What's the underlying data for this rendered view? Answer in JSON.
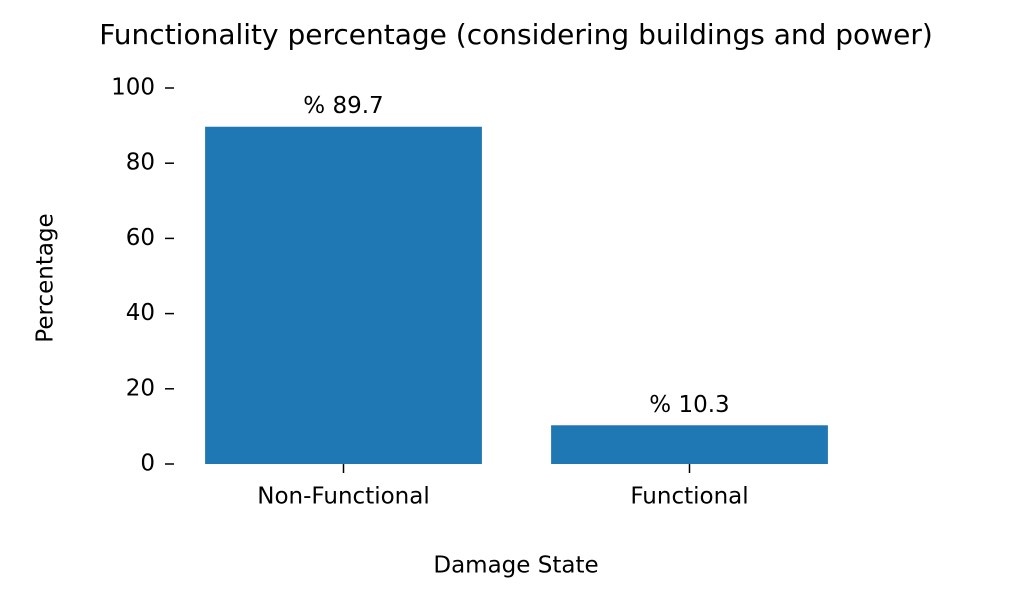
{
  "chart_data": {
    "type": "bar",
    "title": "Functionality percentage (considering buildings and power)",
    "x_label": "Damage State",
    "y_label": "Percentage",
    "categories": [
      "Non-Functional",
      "Functional"
    ],
    "values": [
      89.7,
      10.3
    ],
    "value_labels": [
      "% 89.7",
      "% 10.3"
    ],
    "color": "#1f77b4",
    "ylim": [
      0,
      100
    ],
    "yticks": [
      0,
      20,
      40,
      60,
      80,
      100
    ],
    "grid": false
  }
}
